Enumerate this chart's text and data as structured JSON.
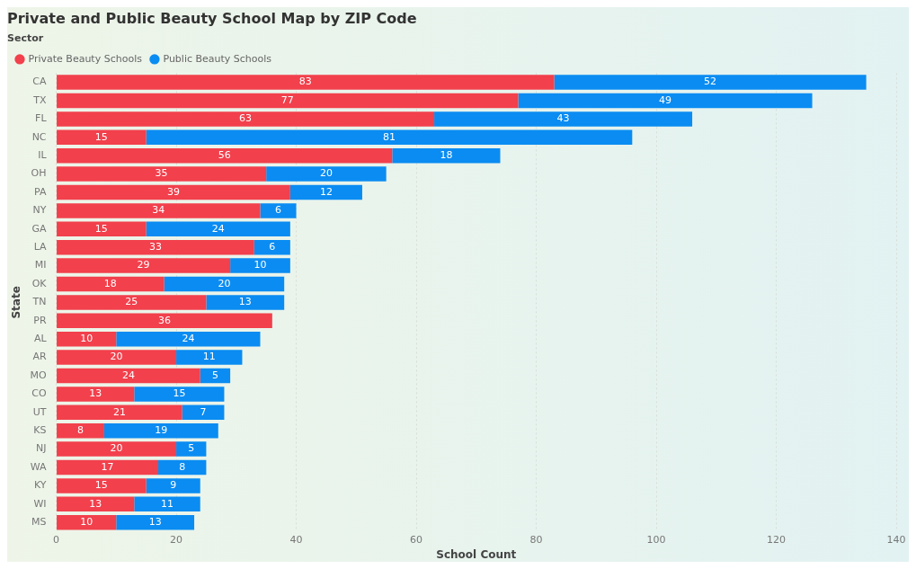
{
  "chart_data": {
    "type": "bar",
    "orientation": "horizontal",
    "stacked": true,
    "title": "Private and Public Beauty School Map by ZIP Code",
    "legend_title": "Sector",
    "legend": "top left",
    "xlabel": "School Count",
    "ylabel": "State",
    "categories": [
      "CA",
      "TX",
      "FL",
      "NC",
      "IL",
      "OH",
      "PA",
      "NY",
      "GA",
      "LA",
      "MI",
      "OK",
      "TN",
      "PR",
      "AL",
      "AR",
      "MO",
      "CO",
      "UT",
      "KS",
      "NJ",
      "WA",
      "KY",
      "WI",
      "MS"
    ],
    "series": [
      {
        "name": "Private Beauty Schools",
        "color": "#f2404c",
        "values": [
          83,
          77,
          63,
          15,
          56,
          35,
          39,
          34,
          15,
          33,
          29,
          18,
          25,
          36,
          10,
          20,
          24,
          13,
          21,
          8,
          20,
          17,
          15,
          13,
          10
        ]
      },
      {
        "name": "Public Beauty Schools",
        "color": "#0a8cf2",
        "values": [
          52,
          49,
          43,
          81,
          18,
          20,
          12,
          6,
          24,
          6,
          10,
          20,
          13,
          null,
          24,
          11,
          5,
          15,
          7,
          19,
          5,
          8,
          9,
          11,
          13
        ]
      }
    ],
    "xlim": [
      0,
      140
    ],
    "xticks": [
      0,
      20,
      40,
      60,
      80,
      100,
      120,
      140
    ],
    "grid": "x",
    "data_labels": true
  }
}
